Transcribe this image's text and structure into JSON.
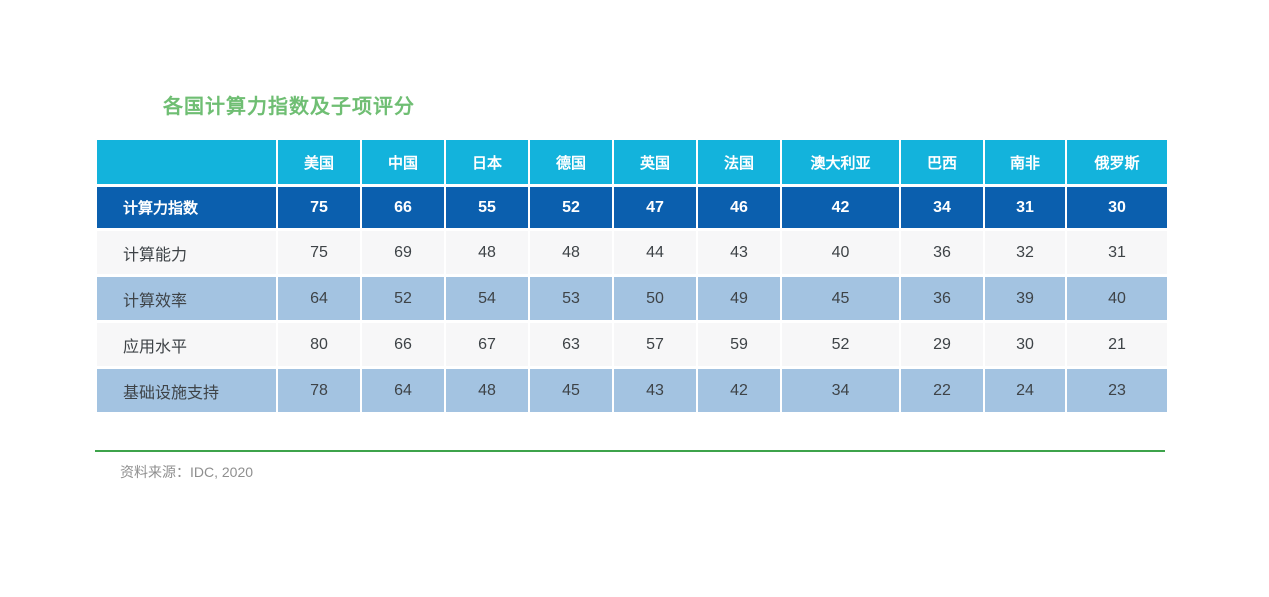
{
  "title": "各国计算力指数及子项评分",
  "source": "资料来源：IDC, 2020",
  "table": {
    "corner_label": "",
    "columns": [
      "美国",
      "中国",
      "日本",
      "德国",
      "英国",
      "法国",
      "澳大利亚",
      "巴西",
      "南非",
      "俄罗斯"
    ],
    "rows": [
      {
        "label": "计算力指数",
        "emphasis": true,
        "values": [
          75,
          66,
          55,
          52,
          47,
          46,
          42,
          34,
          31,
          30
        ]
      },
      {
        "label": "计算能力",
        "emphasis": false,
        "values": [
          75,
          69,
          48,
          48,
          44,
          43,
          40,
          36,
          32,
          31
        ]
      },
      {
        "label": "计算效率",
        "emphasis": false,
        "values": [
          64,
          52,
          54,
          53,
          50,
          49,
          45,
          36,
          39,
          40
        ]
      },
      {
        "label": "应用水平",
        "emphasis": false,
        "values": [
          80,
          66,
          67,
          63,
          57,
          59,
          52,
          29,
          30,
          21
        ]
      },
      {
        "label": "基础设施支持",
        "emphasis": false,
        "values": [
          78,
          64,
          48,
          45,
          43,
          42,
          34,
          22,
          24,
          23
        ]
      }
    ]
  },
  "chart_data": {
    "type": "table",
    "title": "各国计算力指数及子项评分",
    "categories": [
      "美国",
      "中国",
      "日本",
      "德国",
      "英国",
      "法国",
      "澳大利亚",
      "巴西",
      "南非",
      "俄罗斯"
    ],
    "series": [
      {
        "name": "计算力指数",
        "values": [
          75,
          66,
          55,
          52,
          47,
          46,
          42,
          34,
          31,
          30
        ]
      },
      {
        "name": "计算能力",
        "values": [
          75,
          69,
          48,
          48,
          44,
          43,
          40,
          36,
          32,
          31
        ]
      },
      {
        "name": "计算效率",
        "values": [
          64,
          52,
          54,
          53,
          50,
          49,
          45,
          36,
          39,
          40
        ]
      },
      {
        "name": "应用水平",
        "values": [
          80,
          66,
          67,
          63,
          57,
          59,
          52,
          29,
          30,
          21
        ]
      },
      {
        "name": "基础设施支持",
        "values": [
          78,
          64,
          48,
          45,
          43,
          42,
          34,
          22,
          24,
          23
        ]
      }
    ],
    "source": "资料来源：IDC, 2020",
    "value_range": [
      0,
      100
    ]
  },
  "colors": {
    "header_bg": "#13B3DC",
    "index_bg": "#0B5FAE",
    "row_bg": "#F7F7F8",
    "row_alt_bg": "#A3C3E1",
    "title_green": "#6FBE73",
    "rule_green": "#3EA34B",
    "text_dark": "#3E4347",
    "source_gray": "#8F8F8F"
  }
}
